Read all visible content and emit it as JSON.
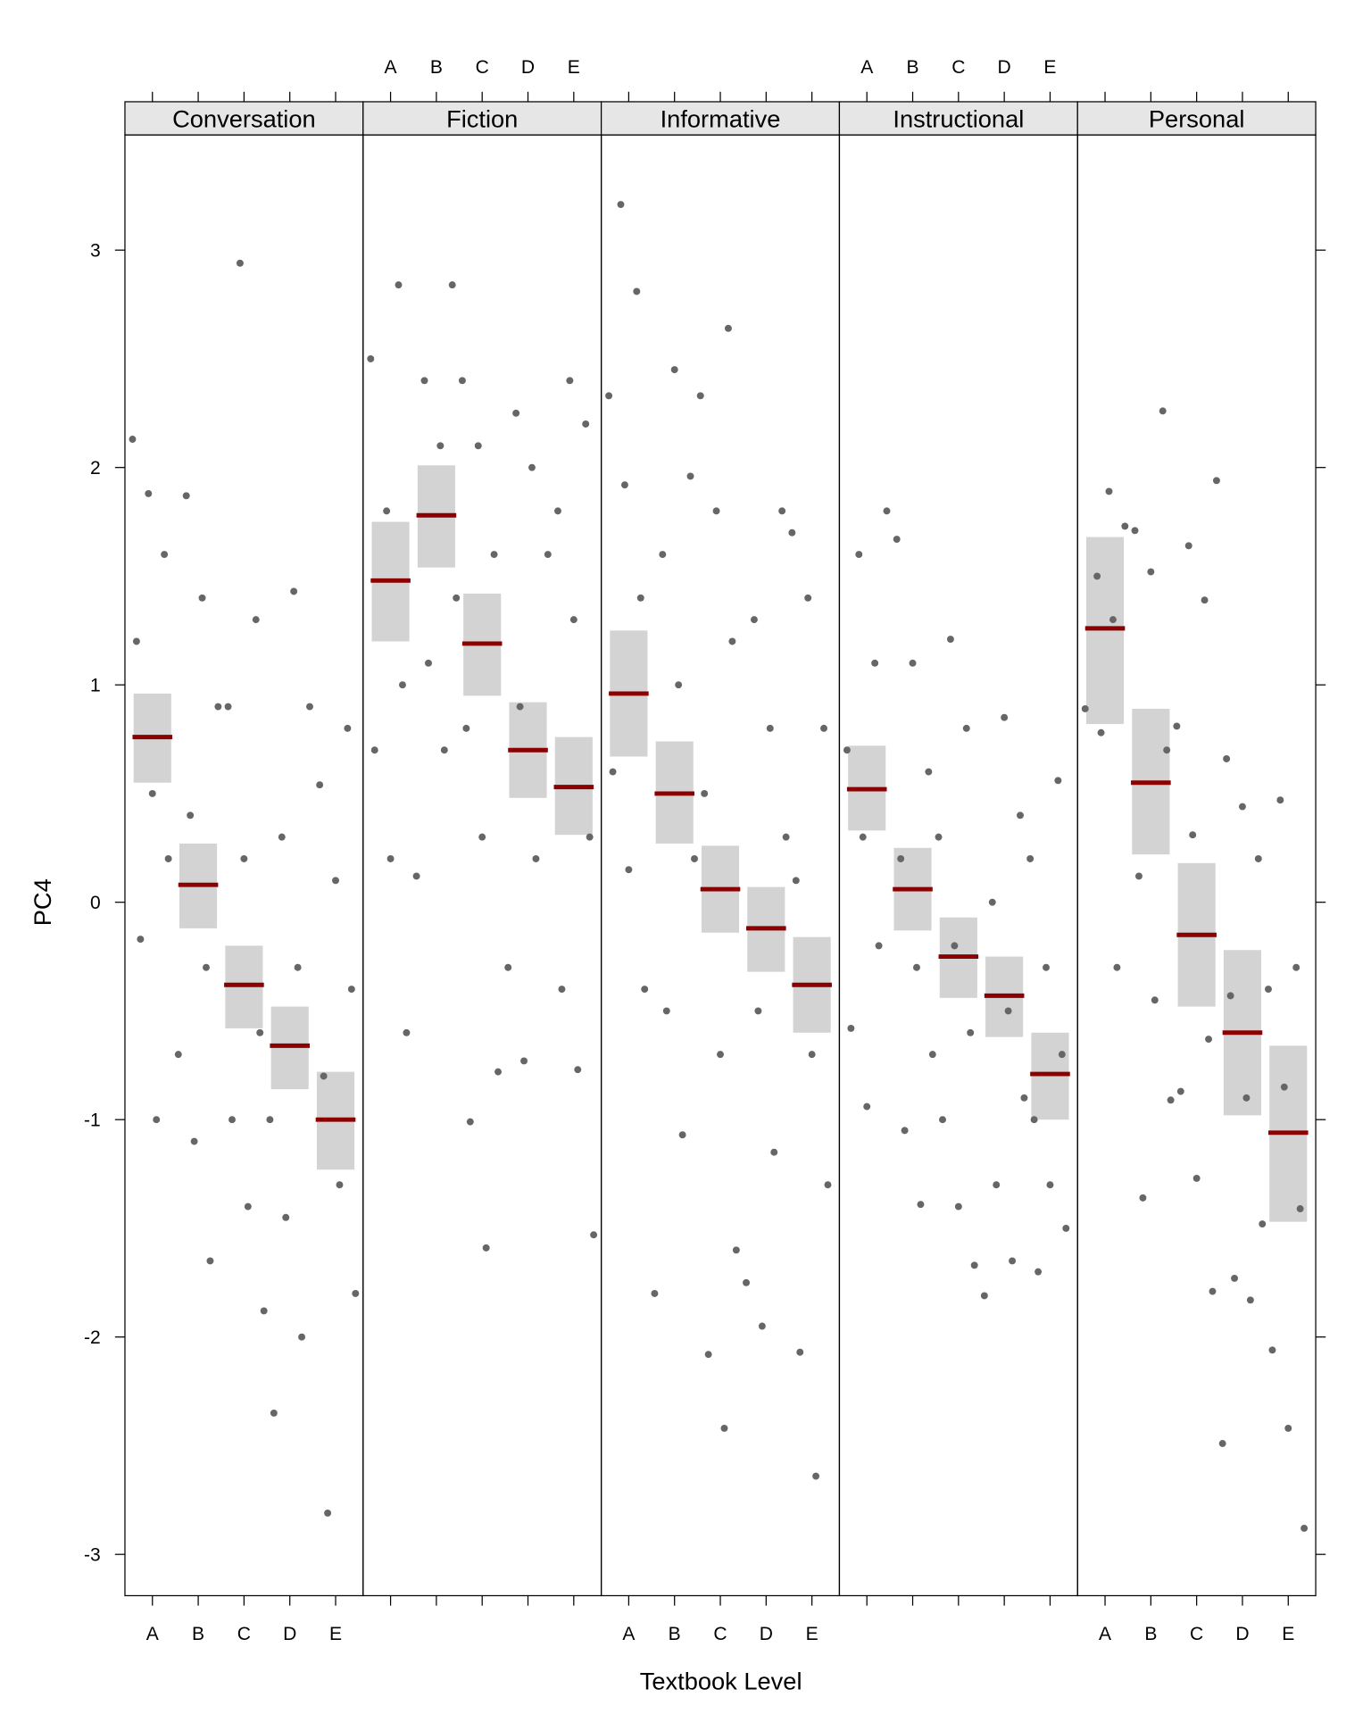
{
  "chart_data": {
    "type": "strip",
    "xlabel": "Textbook Level",
    "ylabel": "PC4",
    "categories": [
      "A",
      "B",
      "C",
      "D",
      "E"
    ],
    "ylim": [
      -3.19,
      3.53
    ],
    "yticks": [
      -3,
      -2,
      -1,
      0,
      1,
      2,
      3
    ],
    "point_color": "#666666",
    "mean_color": "#8b0000",
    "interval_color": "#d3d3d3",
    "panels": [
      {
        "name": "Conversation",
        "means": [
          0.76,
          0.08,
          -0.38,
          -0.66,
          -1.0
        ],
        "lower": [
          0.55,
          -0.12,
          -0.58,
          -0.86,
          -1.23
        ],
        "upper": [
          0.96,
          0.27,
          -0.2,
          -0.48,
          -0.78
        ],
        "points": [
          [
            2.13,
            1.88,
            1.6,
            1.2,
            0.5,
            0.2,
            -0.17,
            -1.0
          ],
          [
            1.87,
            1.4,
            0.9,
            0.4,
            -0.3,
            -0.7,
            -1.1,
            -1.65
          ],
          [
            2.94,
            1.3,
            0.9,
            0.2,
            -0.6,
            -1.0,
            -1.4,
            -1.88
          ],
          [
            1.43,
            0.9,
            0.3,
            -0.3,
            -1.0,
            -1.45,
            -2.0,
            -2.35
          ],
          [
            0.8,
            0.54,
            0.1,
            -0.4,
            -0.8,
            -1.3,
            -1.8,
            -2.81
          ]
        ]
      },
      {
        "name": "Fiction",
        "means": [
          1.48,
          1.78,
          1.19,
          0.7,
          0.53
        ],
        "lower": [
          1.2,
          1.54,
          0.95,
          0.48,
          0.31
        ],
        "upper": [
          1.75,
          2.01,
          1.42,
          0.92,
          0.76
        ],
        "points": [
          [
            2.84,
            2.5,
            1.8,
            1.0,
            0.7,
            0.2,
            -0.6
          ],
          [
            2.84,
            2.4,
            2.1,
            1.4,
            1.1,
            0.7,
            0.12
          ],
          [
            2.4,
            2.1,
            1.6,
            0.8,
            0.3,
            -0.78,
            -1.01,
            -1.59
          ],
          [
            2.25,
            2.0,
            1.6,
            0.9,
            0.2,
            -0.3,
            -0.73
          ],
          [
            2.4,
            2.2,
            1.8,
            1.3,
            0.3,
            -0.4,
            -0.77,
            -1.53
          ]
        ]
      },
      {
        "name": "Informative",
        "means": [
          0.96,
          0.5,
          0.06,
          -0.12,
          -0.38
        ],
        "lower": [
          0.67,
          0.27,
          -0.14,
          -0.32,
          -0.6
        ],
        "upper": [
          1.25,
          0.74,
          0.26,
          0.07,
          -0.16
        ],
        "points": [
          [
            3.21,
            2.81,
            2.33,
            1.92,
            1.4,
            0.6,
            0.15,
            -0.4
          ],
          [
            2.45,
            1.96,
            1.6,
            1.0,
            0.2,
            -0.5,
            -1.07,
            -1.8
          ],
          [
            2.64,
            2.33,
            1.8,
            1.2,
            0.5,
            -0.7,
            -1.6,
            -2.08,
            -2.42
          ],
          [
            1.8,
            1.3,
            0.8,
            0.3,
            -0.5,
            -1.15,
            -1.75,
            -1.95
          ],
          [
            1.7,
            1.4,
            0.8,
            0.1,
            -0.7,
            -1.3,
            -2.07,
            -2.64
          ]
        ]
      },
      {
        "name": "Instructional",
        "means": [
          0.52,
          0.06,
          -0.25,
          -0.43,
          -0.79
        ],
        "lower": [
          0.33,
          -0.13,
          -0.44,
          -0.62,
          -1.0
        ],
        "upper": [
          0.72,
          0.25,
          -0.07,
          -0.25,
          -0.6
        ],
        "points": [
          [
            1.8,
            1.6,
            1.1,
            0.7,
            0.3,
            -0.2,
            -0.58,
            -0.94
          ],
          [
            1.67,
            1.1,
            0.6,
            0.2,
            -0.3,
            -0.7,
            -1.05,
            -1.39
          ],
          [
            1.21,
            0.8,
            0.3,
            -0.2,
            -0.6,
            -1.0,
            -1.4,
            -1.67
          ],
          [
            0.85,
            0.4,
            0.0,
            -0.5,
            -0.9,
            -1.3,
            -1.65,
            -1.81
          ],
          [
            0.56,
            0.2,
            -0.3,
            -0.7,
            -1.0,
            -1.3,
            -1.5,
            -1.7
          ]
        ]
      },
      {
        "name": "Personal",
        "means": [
          1.26,
          0.55,
          -0.15,
          -0.6,
          -1.06
        ],
        "lower": [
          0.82,
          0.22,
          -0.48,
          -0.98,
          -1.47
        ],
        "upper": [
          1.68,
          0.89,
          0.18,
          -0.22,
          -0.66
        ],
        "points": [
          [
            1.89,
            1.73,
            1.5,
            1.3,
            0.89,
            0.78,
            -0.3
          ],
          [
            2.26,
            1.71,
            1.52,
            0.7,
            0.12,
            -0.45,
            -0.91,
            -1.36
          ],
          [
            1.94,
            1.64,
            1.39,
            0.81,
            0.31,
            -0.63,
            -0.87,
            -1.27,
            -1.79
          ],
          [
            0.66,
            0.44,
            0.2,
            -0.43,
            -0.9,
            -1.48,
            -1.73,
            -1.83,
            -2.49
          ],
          [
            0.47,
            -0.3,
            -0.4,
            -0.85,
            -1.41,
            -2.06,
            -2.42,
            -2.88
          ]
        ]
      }
    ]
  }
}
